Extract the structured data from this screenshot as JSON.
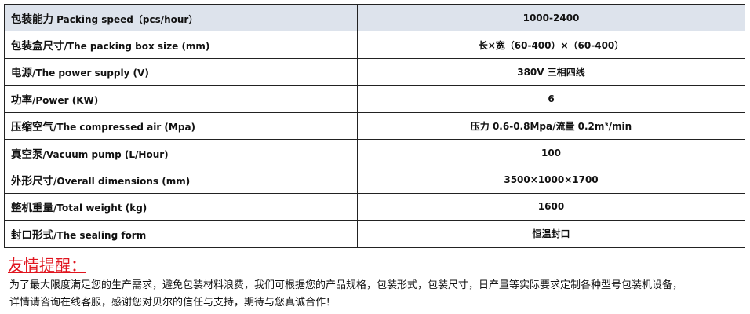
{
  "specs": [
    {
      "zh": "包装能力",
      "en": " Packing speed（pcs/hour）",
      "value": "1000-2400"
    },
    {
      "zh": "包装盒尺寸",
      "en": "/The packing box size (mm)",
      "value": "长×宽（60-400）×（60-400）"
    },
    {
      "zh": "电源",
      "en": "/The power supply (V)",
      "value": "380V  三相四线"
    },
    {
      "zh": "功率",
      "en": "/Power (KW)",
      "value": "6"
    },
    {
      "zh": "压缩空气",
      "en": "/The compressed air (Mpa)",
      "value": "压力 0.6-0.8Mpa/流量 0.2m³/min"
    },
    {
      "zh": "真空泵",
      "en": "/Vacuum pump (L/Hour)",
      "value": "100"
    },
    {
      "zh": "外形尺寸",
      "en": "/Overall dimensions (mm)",
      "value": "3500×1000×1700"
    },
    {
      "zh": "整机重量",
      "en": "/Total weight (kg)",
      "value": "1600"
    },
    {
      "zh": "封口形式",
      "en": "/The sealing form",
      "value": "恒温封口"
    }
  ],
  "notice": {
    "title": "友情提醒：",
    "line1": "为了最大限度满足您的生产需求，避免包装材料浪费，我们可根据您的产品规格，包装形式，包装尺寸，日产量等实际要求定制各种型号包装机设备，",
    "line2": "详情请咨询在线客服，感谢您对贝尔的信任与支持，期待与您真诚合作！"
  }
}
